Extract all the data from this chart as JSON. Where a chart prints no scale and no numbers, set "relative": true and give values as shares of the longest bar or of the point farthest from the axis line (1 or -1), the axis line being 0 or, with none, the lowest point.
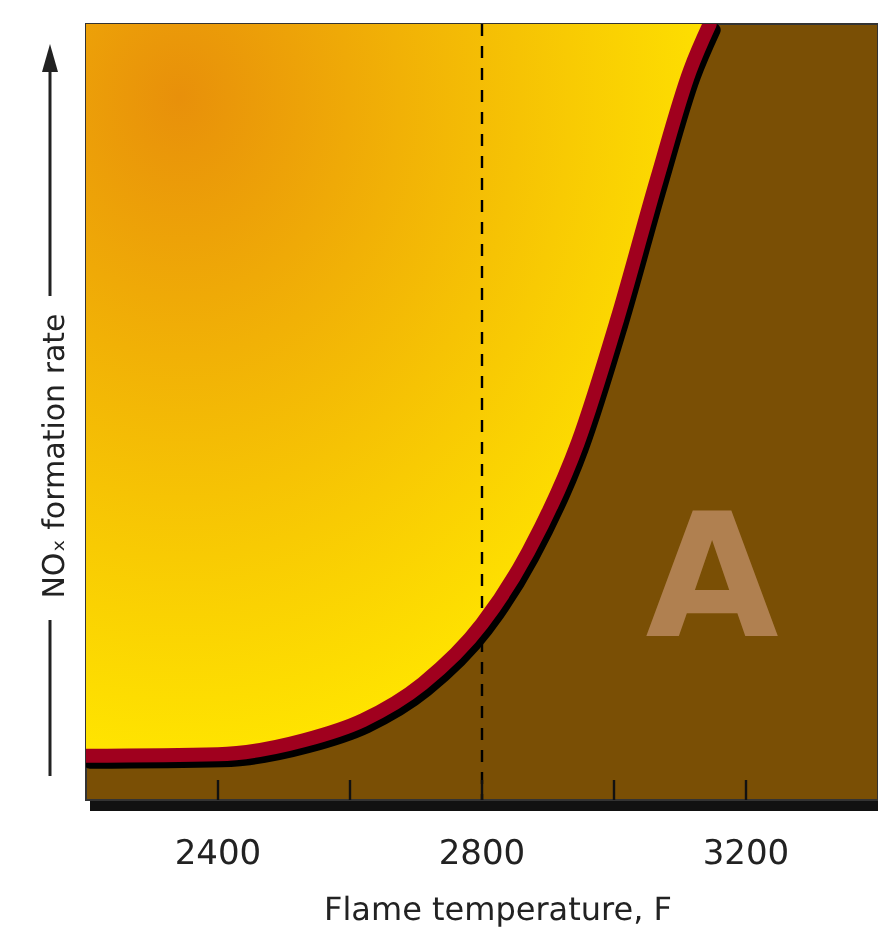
{
  "chart_data": {
    "type": "line",
    "relative": true,
    "xlabel": "Flame temperature,  F",
    "ylabel": "NOₓ formation rate",
    "x": [
      2200,
      2400,
      2530,
      2620,
      2710,
      2800,
      2870,
      2945,
      3005,
      3065,
      3115,
      3145
    ],
    "series": [
      {
        "color": "#a0001e",
        "values": [
          0.057,
          0.059,
          0.077,
          0.103,
          0.15,
          0.227,
          0.32,
          0.46,
          0.62,
          0.8,
          0.94,
          1.0
        ]
      }
    ],
    "xlim": [
      2200,
      3400
    ],
    "xticks": [
      {
        "value": 2400,
        "label": "2400"
      },
      {
        "value": 2600,
        "label": null
      },
      {
        "value": 2800,
        "label": "2800"
      },
      {
        "value": 3000,
        "label": null
      },
      {
        "value": 3200,
        "label": "3200"
      }
    ],
    "ref_lines": [
      {
        "axis": "x",
        "value": 2800,
        "color": "#000000",
        "line_style": "dashed"
      }
    ],
    "annotations": [
      "A"
    ],
    "tick_labels": "x",
    "grid": false,
    "line_style": "solid"
  }
}
